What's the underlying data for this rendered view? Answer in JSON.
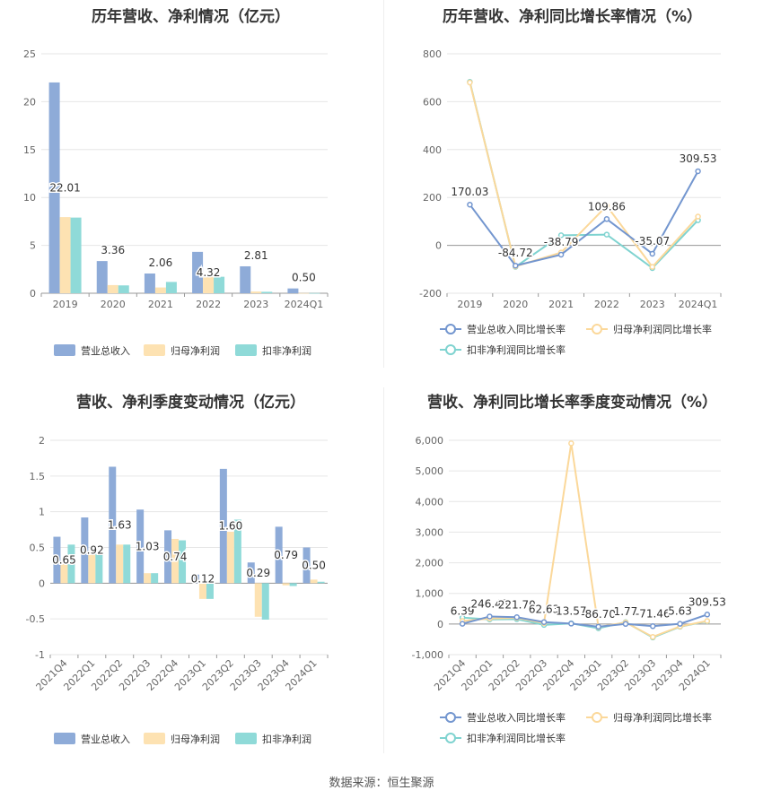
{
  "source": "数据来源：恒生聚源",
  "colors": {
    "revenue": "#8eabd8",
    "net_profit": "#fde2b2",
    "deducted_profit": "#8fdad8",
    "line_revenue": "#7396cf",
    "line_net": "#fbd89a",
    "line_deducted": "#7fd3d0",
    "grid": "#e6e6e6",
    "axis": "#999999"
  },
  "chart_data": [
    {
      "type": "bar",
      "title": "历年营收、净利情况（亿元）",
      "categories": [
        "2019",
        "2020",
        "2021",
        "2022",
        "2023",
        "2024Q1"
      ],
      "series": [
        {
          "name": "营业总收入",
          "values": [
            22.01,
            3.36,
            2.06,
            4.32,
            2.81,
            0.5
          ]
        },
        {
          "name": "归母净利润",
          "values": [
            7.95,
            0.85,
            0.6,
            1.75,
            0.18,
            0.02
          ]
        },
        {
          "name": "扣非净利润",
          "values": [
            7.9,
            0.82,
            1.18,
            1.72,
            0.15,
            0.02
          ]
        }
      ],
      "data_labels": [
        "22.01",
        "3.36",
        "2.06",
        "4.32",
        "2.81",
        "0.50"
      ],
      "y_ticks": [
        "25",
        "20",
        "15",
        "10",
        "5",
        "0"
      ],
      "ylim": [
        0,
        25
      ],
      "grid": true,
      "legend": "bottom"
    },
    {
      "type": "line",
      "title": "历年营收、净利同比增长率情况（%）",
      "categories": [
        "2019",
        "2020",
        "2021",
        "2022",
        "2023",
        "2024Q1"
      ],
      "series": [
        {
          "name": "营业总收入同比增长率",
          "values": [
            170.03,
            -84.72,
            -38.79,
            109.86,
            -35.07,
            309.53
          ]
        },
        {
          "name": "归母净利润同比增长率",
          "values": [
            680,
            -88,
            -30,
            165,
            -90,
            120
          ]
        },
        {
          "name": "扣非净利润同比增长率",
          "values": [
            683,
            -90,
            42,
            45,
            -95,
            105
          ]
        }
      ],
      "data_labels": [
        "170.03",
        "-84.72",
        "-38.79",
        "109.86",
        "-35.07",
        "309.53"
      ],
      "y_ticks": [
        "800",
        "600",
        "400",
        "200",
        "0",
        "-200"
      ],
      "ylim": [
        -200,
        800
      ],
      "grid": true,
      "legend": "bottom"
    },
    {
      "type": "bar",
      "title": "营收、净利季度变动情况（亿元）",
      "categories": [
        "2021Q4",
        "2022Q1",
        "2022Q2",
        "2022Q3",
        "2022Q4",
        "2023Q1",
        "2023Q2",
        "2023Q3",
        "2023Q4",
        "2024Q1"
      ],
      "series": [
        {
          "name": "营业总收入",
          "values": [
            0.65,
            0.92,
            1.63,
            1.03,
            0.74,
            0.12,
            1.6,
            0.29,
            0.79,
            0.5
          ]
        },
        {
          "name": "归母净利润",
          "values": [
            0.27,
            0.4,
            0.54,
            0.14,
            0.62,
            -0.22,
            0.72,
            -0.47,
            -0.03,
            0.05
          ]
        },
        {
          "name": "扣非净利润",
          "values": [
            0.54,
            0.45,
            0.54,
            0.14,
            0.6,
            -0.22,
            0.89,
            -0.51,
            -0.04,
            0.02
          ]
        }
      ],
      "data_labels": [
        "0.65",
        "0.92",
        "1.63",
        "1.03",
        "0.74",
        "0.12",
        "1.60",
        "0.29",
        "0.79",
        "0.50"
      ],
      "y_ticks": [
        "2",
        "1.5",
        "1",
        "0.5",
        "0",
        "-0.5",
        "-1"
      ],
      "ylim": [
        -1,
        2
      ],
      "grid": true,
      "legend": "bottom"
    },
    {
      "type": "line",
      "title": "营收、净利同比增长率季度变动情况（%）",
      "categories": [
        "2021Q4",
        "2022Q1",
        "2022Q2",
        "2022Q3",
        "2022Q4",
        "2023Q1",
        "2023Q2",
        "2023Q3",
        "2023Q4",
        "2024Q1"
      ],
      "series": [
        {
          "name": "营业总收入同比增长率",
          "values": [
            6.39,
            246.48,
            221.7,
            62.63,
            13.57,
            -86.7,
            1.77,
            -71.46,
            5.63,
            309.53
          ]
        },
        {
          "name": "归母净利润同比增长率",
          "values": [
            100,
            180,
            200,
            30,
            5900,
            -100,
            50,
            -420,
            -80,
            100
          ]
        },
        {
          "name": "扣非净利润同比增长率",
          "values": [
            210,
            150,
            160,
            -30,
            20,
            -140,
            60,
            -440,
            -90,
            90
          ]
        }
      ],
      "data_labels": [
        "6.39",
        "246.48",
        "221.70",
        "62.63",
        "13.57",
        "-86.70",
        "1.77",
        "-71.46",
        "5.63",
        "309.53"
      ],
      "y_ticks": [
        "6,000",
        "5,000",
        "4,000",
        "3,000",
        "2,000",
        "1,000",
        "0",
        "-1,000"
      ],
      "ylim": [
        -1000,
        6000
      ],
      "grid": true,
      "legend": "bottom"
    }
  ]
}
